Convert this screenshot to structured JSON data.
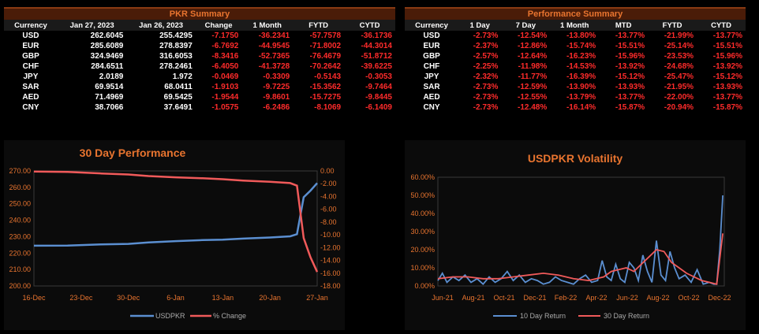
{
  "pkr_summary": {
    "title": "PKR Summary",
    "columns": [
      "Currency",
      "Jan 27, 2023",
      "Jan 26, 2023",
      "Change",
      "1 Month",
      "FYTD",
      "CYTD"
    ],
    "rows": [
      [
        "USD",
        "262.6045",
        "255.4295",
        "-7.1750",
        "-36.2341",
        "-57.7578",
        "-36.1736"
      ],
      [
        "EUR",
        "285.6089",
        "278.8397",
        "-6.7692",
        "-44.9545",
        "-71.8002",
        "-44.3014"
      ],
      [
        "GBP",
        "324.9469",
        "316.6053",
        "-8.3416",
        "-52.7365",
        "-76.4679",
        "-51.8712"
      ],
      [
        "CHF",
        "284.6511",
        "278.2461",
        "-6.4050",
        "-41.3728",
        "-70.2642",
        "-39.6225"
      ],
      [
        "JPY",
        "2.0189",
        "1.972",
        "-0.0469",
        "-0.3309",
        "-0.5143",
        "-0.3053"
      ],
      [
        "SAR",
        "69.9514",
        "68.0411",
        "-1.9103",
        "-9.7225",
        "-15.3562",
        "-9.7464"
      ],
      [
        "AED",
        "71.4969",
        "69.5425",
        "-1.9544",
        "-9.8601",
        "-15.7275",
        "-9.8445"
      ],
      [
        "CNY",
        "38.7066",
        "37.6491",
        "-1.0575",
        "-6.2486",
        "-8.1069",
        "-6.1409"
      ]
    ]
  },
  "performance_summary": {
    "title": "Performance Summary",
    "columns": [
      "Currency",
      "1 Day",
      "7 Day",
      "1 Month",
      "MTD",
      "FYTD",
      "CYTD"
    ],
    "rows": [
      [
        "USD",
        "-2.73%",
        "-12.54%",
        "-13.80%",
        "-13.77%",
        "-21.99%",
        "-13.77%"
      ],
      [
        "EUR",
        "-2.37%",
        "-12.86%",
        "-15.74%",
        "-15.51%",
        "-25.14%",
        "-15.51%"
      ],
      [
        "GBP",
        "-2.57%",
        "-12.64%",
        "-16.23%",
        "-15.96%",
        "-23.53%",
        "-15.96%"
      ],
      [
        "CHF",
        "-2.25%",
        "-11.98%",
        "-14.53%",
        "-13.92%",
        "-24.68%",
        "-13.92%"
      ],
      [
        "JPY",
        "-2.32%",
        "-11.77%",
        "-16.39%",
        "-15.12%",
        "-25.47%",
        "-15.12%"
      ],
      [
        "SAR",
        "-2.73%",
        "-12.59%",
        "-13.90%",
        "-13.93%",
        "-21.95%",
        "-13.93%"
      ],
      [
        "AED",
        "-2.73%",
        "-12.55%",
        "-13.79%",
        "-13.77%",
        "-22.00%",
        "-13.77%"
      ],
      [
        "CNY",
        "-2.73%",
        "-12.48%",
        "-16.14%",
        "-15.87%",
        "-20.94%",
        "-15.87%"
      ]
    ]
  },
  "chart_data": [
    {
      "type": "line",
      "title": "30 Day Performance",
      "x_ticks": [
        "16-Dec",
        "23-Dec",
        "30-Dec",
        "6-Jan",
        "13-Jan",
        "20-Jan",
        "27-Jan"
      ],
      "y_ticks_left": [
        "200.00",
        "210.00",
        "220.00",
        "230.00",
        "240.00",
        "250.00",
        "260.00",
        "270.00"
      ],
      "y_ticks_right": [
        "0.00",
        "-2.00",
        "-4.00",
        "-6.00",
        "-8.00",
        "-10.00",
        "-12.00",
        "-14.00",
        "-16.00",
        "-18.00"
      ],
      "ylim_left": [
        200,
        270
      ],
      "ylim_right": [
        -18,
        0
      ],
      "x_range": [
        0,
        42
      ],
      "colors": {
        "USDPKR": "#5b8fd1",
        "% Change": "#f05a5a"
      },
      "series": [
        {
          "name": "USDPKR",
          "axis": "left",
          "x": [
            0,
            5,
            10,
            14,
            17,
            21,
            25,
            28,
            31,
            35,
            38,
            39,
            40,
            41,
            42
          ],
          "values": [
            224.5,
            224.6,
            225.3,
            225.6,
            226.5,
            227.3,
            227.9,
            228.2,
            228.8,
            229.5,
            230.2,
            231.5,
            254.0,
            258.0,
            262.6
          ]
        },
        {
          "name": "% Change",
          "axis": "right",
          "x": [
            0,
            5,
            10,
            14,
            17,
            21,
            25,
            28,
            31,
            35,
            38,
            39,
            40,
            41,
            42
          ],
          "values": [
            -0.1,
            -0.15,
            -0.4,
            -0.55,
            -0.8,
            -1.0,
            -1.15,
            -1.3,
            -1.5,
            -1.7,
            -1.9,
            -2.3,
            -10.5,
            -13.5,
            -15.8
          ]
        }
      ],
      "legend": [
        "USDPKR",
        "% Change"
      ]
    },
    {
      "type": "line",
      "title": "USDPKR Volatility",
      "x_ticks": [
        "Jun-21",
        "Aug-21",
        "Oct-21",
        "Dec-21",
        "Feb-22",
        "Apr-22",
        "Jun-22",
        "Aug-22",
        "Oct-22",
        "Dec-22"
      ],
      "y_ticks": [
        "0.00%",
        "10.00%",
        "20.00%",
        "30.00%",
        "40.00%",
        "50.00%",
        "60.00%"
      ],
      "ylim": [
        0,
        60
      ],
      "x_range": [
        0,
        19
      ],
      "colors": {
        "10 Day Return": "#5b8fd1",
        "30 Day Return": "#f05a5a"
      },
      "series": [
        {
          "name": "10 Day Return",
          "x": [
            0,
            0.3,
            0.6,
            1,
            1.4,
            1.8,
            2.2,
            2.6,
            3,
            3.4,
            3.8,
            4.2,
            4.6,
            5,
            5.4,
            5.8,
            6.2,
            6.6,
            7,
            7.4,
            7.8,
            8.2,
            8.6,
            9,
            9.4,
            9.8,
            10.2,
            10.6,
            10.9,
            11.2,
            11.5,
            11.8,
            12.1,
            12.4,
            12.7,
            13,
            13.3,
            13.6,
            13.9,
            14.2,
            14.5,
            14.8,
            15.1,
            15.4,
            15.7,
            16,
            16.4,
            16.8,
            17.2,
            17.6,
            18,
            18.3,
            18.5,
            18.7,
            18.9
          ],
          "values": [
            3,
            7,
            2,
            5,
            3,
            6,
            2,
            4,
            1,
            5,
            2,
            4,
            8,
            3,
            6,
            2,
            4,
            3,
            1,
            2,
            5,
            3,
            2,
            1,
            4,
            6,
            2,
            3,
            14,
            5,
            3,
            12,
            4,
            2,
            13,
            10,
            3,
            17,
            8,
            2,
            25,
            6,
            3,
            19,
            10,
            4,
            6,
            2,
            9,
            1,
            2,
            1,
            1,
            20,
            50
          ]
        },
        {
          "name": "30 Day Return",
          "x": [
            0,
            1,
            2,
            3,
            4,
            5,
            6,
            7,
            8,
            9,
            10,
            11,
            11.5,
            12,
            12.5,
            13,
            13.5,
            14,
            14.5,
            15,
            15.5,
            16,
            16.5,
            17,
            17.5,
            18,
            18.5,
            18.9
          ],
          "values": [
            4,
            5,
            5,
            4,
            4,
            5,
            6,
            7,
            6,
            4,
            3,
            5,
            8,
            9,
            10,
            8,
            12,
            16,
            20,
            19,
            13,
            10,
            7,
            5,
            3,
            2,
            1,
            29
          ]
        }
      ],
      "legend": [
        "10 Day Return",
        "30 Day Return"
      ]
    }
  ]
}
